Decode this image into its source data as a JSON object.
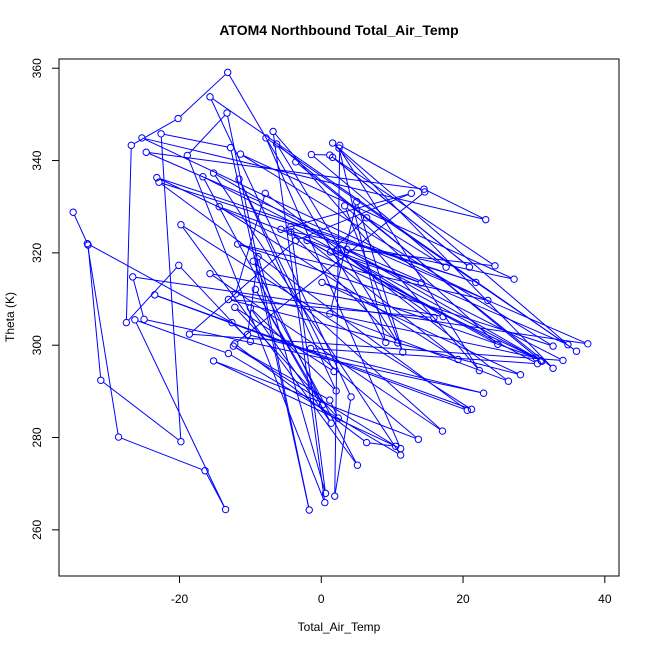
{
  "chart_data": {
    "type": "line",
    "title": "ATOM4 Northbound Total_Air_Temp",
    "xlabel": "Total_Air_Temp",
    "ylabel": "Theta (K)",
    "xlim": [
      -37,
      42
    ],
    "ylim": [
      250,
      362
    ],
    "xticks": [
      -20,
      0,
      20,
      40
    ],
    "yticks": [
      260,
      280,
      300,
      320,
      340,
      360
    ],
    "marker": "open-circle",
    "grid": false,
    "colors": {
      "series": "#0000ff",
      "axis": "#000000",
      "background": "#ffffff"
    },
    "series": [
      {
        "points": [
          [
            -35.0,
            328.8
          ],
          [
            -32.9,
            321.7
          ],
          [
            -31.1,
            292.4
          ],
          [
            -19.8,
            279.1
          ],
          [
            -22.6,
            345.8
          ],
          [
            -12.8,
            342.8
          ],
          [
            -1.7,
            264.3
          ],
          [
            -13.3,
            350.3
          ],
          [
            -18.9,
            341.1
          ],
          [
            0.5,
            265.9
          ],
          [
            -6.8,
            346.3
          ],
          [
            22.3,
            294.5
          ],
          [
            2.5,
            342.7
          ],
          [
            9.1,
            300.6
          ],
          [
            -13.2,
            359.1
          ],
          [
            -20.2,
            349.1
          ],
          [
            -26.8,
            343.3
          ],
          [
            -27.5,
            304.9
          ],
          [
            -20.1,
            317.3
          ],
          [
            -10.0,
            300.8
          ],
          [
            -12.6,
            304.9
          ],
          [
            -33.0,
            322.0
          ],
          [
            -28.6,
            280.1
          ],
          [
            -16.4,
            272.8
          ],
          [
            -13.5,
            264.4
          ],
          [
            -26.3,
            305.5
          ],
          [
            -13.1,
            298.2
          ],
          [
            11.2,
            276.2
          ],
          [
            -15.2,
            337.3
          ],
          [
            31.0,
            296.7
          ],
          [
            -23.2,
            336.3
          ],
          [
            21.8,
            313.6
          ],
          [
            -22.9,
            335.3
          ],
          [
            20.6,
            285.9
          ],
          [
            -23.5,
            310.9
          ],
          [
            21.2,
            286.1
          ],
          [
            -19.8,
            326.1
          ],
          [
            5.1,
            274.0
          ],
          [
            -16.7,
            336.5
          ],
          [
            34.1,
            296.7
          ],
          [
            -18.6,
            302.4
          ],
          [
            -3.6,
            322.7
          ],
          [
            12.7,
            332.9
          ],
          [
            -5.7,
            325.1
          ],
          [
            27.2,
            314.3
          ],
          [
            -11.4,
            341.4
          ],
          [
            32.7,
            299.8
          ],
          [
            -11.8,
            321.9
          ],
          [
            23.5,
            309.7
          ],
          [
            -25.3,
            344.9
          ],
          [
            23.2,
            327.2
          ],
          [
            14.5,
            333.8
          ],
          [
            -24.7,
            341.8
          ],
          [
            37.6,
            300.3
          ],
          [
            -26.6,
            314.8
          ],
          [
            -25.0,
            305.6
          ],
          [
            22.9,
            289.6
          ],
          [
            -10.4,
            302.3
          ],
          [
            -8.9,
            319.2
          ],
          [
            0.6,
            267.9
          ],
          [
            -4.3,
            325.7
          ],
          [
            31.1,
            296.5
          ],
          [
            -6.3,
            343.6
          ],
          [
            10.8,
            300.5
          ],
          [
            -4.3,
            324.5
          ],
          [
            30.5,
            296.0
          ],
          [
            -1.5,
            299.3
          ],
          [
            13.7,
            279.6
          ],
          [
            -15.2,
            296.6
          ],
          [
            11.2,
            277.6
          ],
          [
            -7.8,
            344.9
          ],
          [
            36.0,
            298.7
          ],
          [
            -15.7,
            353.8
          ],
          [
            4.2,
            288.8
          ],
          [
            1.9,
            267.3
          ],
          [
            2.6,
            343.3
          ],
          [
            14.6,
            333.2
          ],
          [
            -12.2,
            300.3
          ],
          [
            6.4,
            278.9
          ],
          [
            10.5,
            278.1
          ],
          [
            -12.4,
            299.8
          ],
          [
            1.2,
            288.1
          ],
          [
            2.4,
            284.2
          ],
          [
            -12.2,
            308.2
          ],
          [
            1.8,
            294.3
          ],
          [
            -11.6,
            336.0
          ],
          [
            2.1,
            290.1
          ],
          [
            -10.0,
            308.1
          ],
          [
            1.4,
            283.1
          ],
          [
            -9.3,
            312.1
          ],
          [
            0.2,
            287.1
          ],
          [
            -9.6,
            318.2
          ],
          [
            17.1,
            281.4
          ],
          [
            -15.7,
            315.5
          ],
          [
            17.2,
            306.2
          ],
          [
            2.3,
            320.6
          ],
          [
            15.9,
            306.0
          ],
          [
            -13.1,
            309.9
          ],
          [
            28.1,
            293.6
          ],
          [
            0.1,
            313.6
          ],
          [
            30.3,
            297.3
          ],
          [
            -12.1,
            311.1
          ],
          [
            -7.9,
            332.9
          ],
          [
            26.4,
            292.2
          ],
          [
            1.2,
            306.8
          ],
          [
            5.0,
            331.1
          ],
          [
            11.5,
            298.5
          ],
          [
            3.3,
            330.2
          ],
          [
            24.9,
            300.2
          ],
          [
            -2.0,
            322.7
          ],
          [
            19.3,
            296.9
          ],
          [
            -14.4,
            330.0
          ],
          [
            14.1,
            313.5
          ],
          [
            1.3,
            320.2
          ],
          [
            6.4,
            327.6
          ],
          [
            17.6,
            316.9
          ],
          [
            -1.4,
            341.3
          ],
          [
            1.2,
            341.2
          ],
          [
            20.9,
            316.9
          ],
          [
            1.6,
            340.7
          ],
          [
            24.5,
            317.2
          ],
          [
            3.6,
            320.8
          ],
          [
            34.8,
            300.1
          ],
          [
            1.6,
            343.8
          ],
          [
            32.7,
            295.0
          ],
          [
            -3.6,
            339.7
          ]
        ]
      }
    ]
  }
}
